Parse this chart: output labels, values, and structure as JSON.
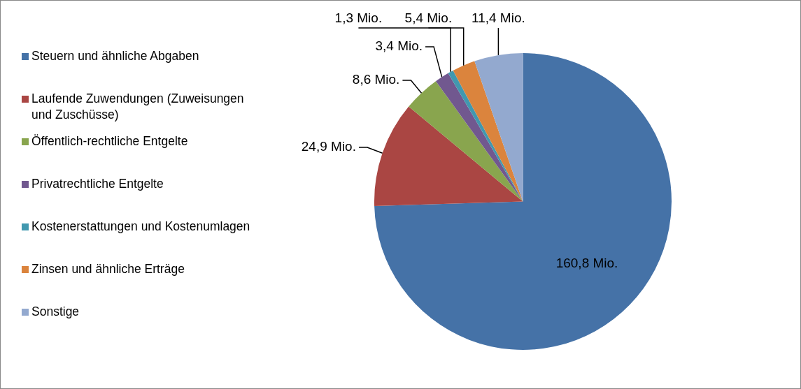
{
  "chart_data": {
    "type": "pie",
    "categories": [
      "Steuern und ähnliche Abgaben",
      "Laufende Zuwendungen (Zuweisungen und Zuschüsse)",
      "Öffentlich-rechtliche Entgelte",
      "Privatrechtliche Entgelte",
      "Kostenerstattungen und Kostenumlagen",
      "Zinsen und ähnliche Erträge",
      "Sonstige"
    ],
    "values": [
      160.8,
      24.9,
      8.6,
      3.4,
      1.3,
      5.4,
      11.4
    ],
    "value_labels": [
      "160,8 Mio.",
      "24,9 Mio.",
      "8,6 Mio.",
      "3,4 Mio.",
      "1,3 Mio.",
      "5,4 Mio.",
      "11,4 Mio."
    ],
    "colors": [
      "#4572a7",
      "#aa4643",
      "#89a54e",
      "#71588f",
      "#4198af",
      "#db843d",
      "#93a9cf"
    ],
    "legend": "left"
  }
}
